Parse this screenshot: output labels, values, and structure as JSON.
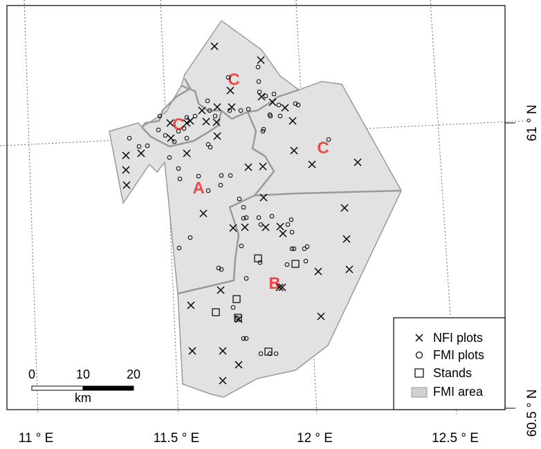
{
  "map": {
    "x_ticks": [
      "11 ° E",
      "11.5 ° E",
      "12 ° E",
      "12.5 ° E"
    ],
    "y_ticks": [
      "61 ° N",
      "60.5 ° N"
    ],
    "region_labels": [
      "C",
      "C",
      "C",
      "A",
      "B"
    ],
    "colors": {
      "area_fill": "#e2e2e2",
      "boundary": "#999999",
      "label": "#f04848",
      "graticule": "#666666"
    }
  },
  "legend": {
    "items": [
      {
        "label": "NFI plots",
        "symbol": "cross"
      },
      {
        "label": "FMI plots",
        "symbol": "circle"
      },
      {
        "label": "Stands",
        "symbol": "square"
      },
      {
        "label": "FMI area",
        "symbol": "filled-rect"
      }
    ]
  },
  "scalebar": {
    "ticks": [
      "0",
      "10",
      "20"
    ],
    "unit": "km"
  }
}
